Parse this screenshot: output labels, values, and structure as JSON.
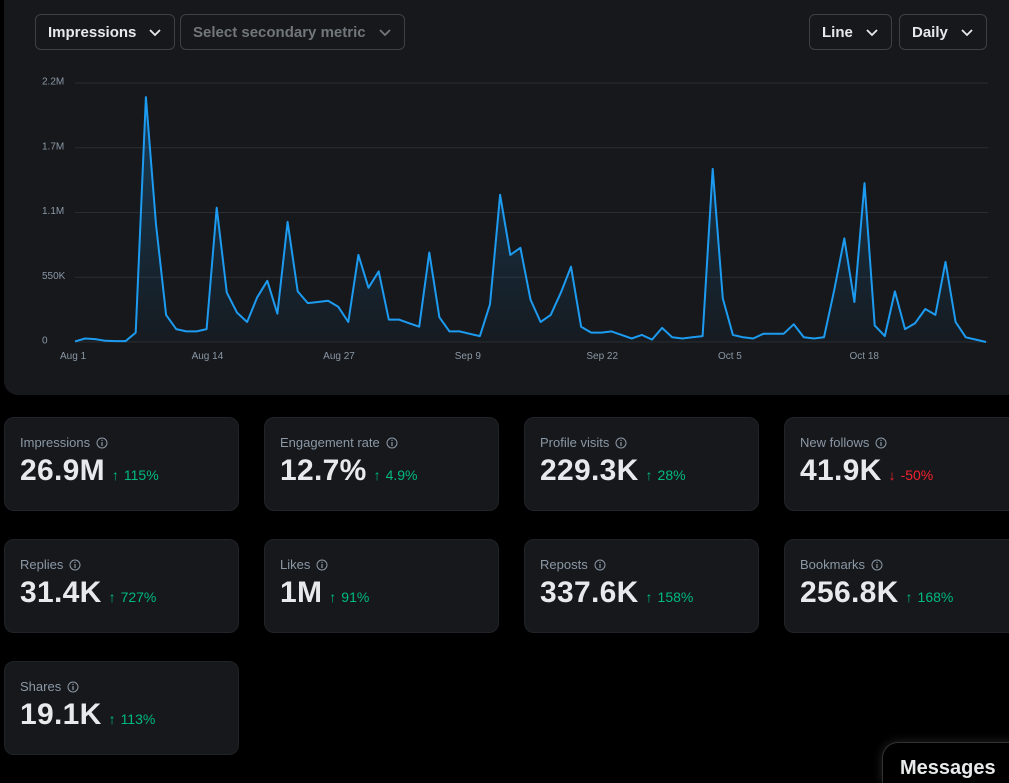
{
  "controls": {
    "primary_metric": "Impressions",
    "secondary_metric_placeholder": "Select secondary metric",
    "chart_type": "Line",
    "granularity": "Daily"
  },
  "chart_data": {
    "type": "area",
    "title": "",
    "xlabel": "",
    "ylabel": "",
    "ylim": [
      0,
      2200000
    ],
    "y_ticks": [
      {
        "value": 0,
        "label": "0"
      },
      {
        "value": 550000,
        "label": "550K"
      },
      {
        "value": 1100000,
        "label": "1.1M"
      },
      {
        "value": 1650000,
        "label": "1.7M"
      },
      {
        "value": 2200000,
        "label": "2.2M"
      }
    ],
    "x_ticks": [
      {
        "day": 0,
        "label": "Aug 1"
      },
      {
        "day": 13,
        "label": "Aug 14"
      },
      {
        "day": 26,
        "label": "Aug 27"
      },
      {
        "day": 39,
        "label": "Sep 9"
      },
      {
        "day": 52,
        "label": "Sep 22"
      },
      {
        "day": 65,
        "label": "Oct 5"
      },
      {
        "day": 78,
        "label": "Oct 18"
      }
    ],
    "grid": true,
    "series": [
      {
        "line_color": "#1d9bf0",
        "values": [
          5000,
          30000,
          25000,
          10000,
          8000,
          8000,
          80000,
          2080000,
          1000000,
          230000,
          110000,
          90000,
          90000,
          110000,
          1140000,
          420000,
          250000,
          170000,
          380000,
          520000,
          240000,
          1020000,
          430000,
          330000,
          340000,
          350000,
          300000,
          170000,
          740000,
          460000,
          600000,
          190000,
          190000,
          160000,
          130000,
          760000,
          210000,
          90000,
          90000,
          70000,
          50000,
          320000,
          1250000,
          740000,
          800000,
          360000,
          170000,
          230000,
          420000,
          640000,
          130000,
          80000,
          80000,
          90000,
          60000,
          30000,
          60000,
          20000,
          120000,
          40000,
          30000,
          40000,
          50000,
          1470000,
          370000,
          60000,
          40000,
          30000,
          70000,
          70000,
          70000,
          150000,
          40000,
          30000,
          40000,
          440000,
          880000,
          340000,
          1350000,
          140000,
          50000,
          430000,
          110000,
          160000,
          280000,
          230000,
          680000,
          170000,
          40000,
          20000,
          0
        ]
      }
    ]
  },
  "cards": [
    {
      "label": "Impressions",
      "value": "26.9M",
      "delta": "115%",
      "direction": "up"
    },
    {
      "label": "Engagement rate",
      "value": "12.7%",
      "delta": "4.9%",
      "direction": "up"
    },
    {
      "label": "Profile visits",
      "value": "229.3K",
      "delta": "28%",
      "direction": "up"
    },
    {
      "label": "New follows",
      "value": "41.9K",
      "delta": "-50%",
      "direction": "down"
    },
    {
      "label": "Replies",
      "value": "31.4K",
      "delta": "727%",
      "direction": "up"
    },
    {
      "label": "Likes",
      "value": "1M",
      "delta": "91%",
      "direction": "up"
    },
    {
      "label": "Reposts",
      "value": "337.6K",
      "delta": "158%",
      "direction": "up"
    },
    {
      "label": "Bookmarks",
      "value": "256.8K",
      "delta": "168%",
      "direction": "up"
    },
    {
      "label": "Shares",
      "value": "19.1K",
      "delta": "113%",
      "direction": "up"
    }
  ],
  "messages": {
    "label": "Messages"
  },
  "colors": {
    "accent": "#1d9bf0",
    "positive": "#00ba7c",
    "negative": "#f4212e"
  },
  "icons": {
    "dropdown": "chevron-down-icon",
    "info": "info-icon",
    "up": "arrow-up-icon",
    "down": "arrow-down-icon"
  }
}
